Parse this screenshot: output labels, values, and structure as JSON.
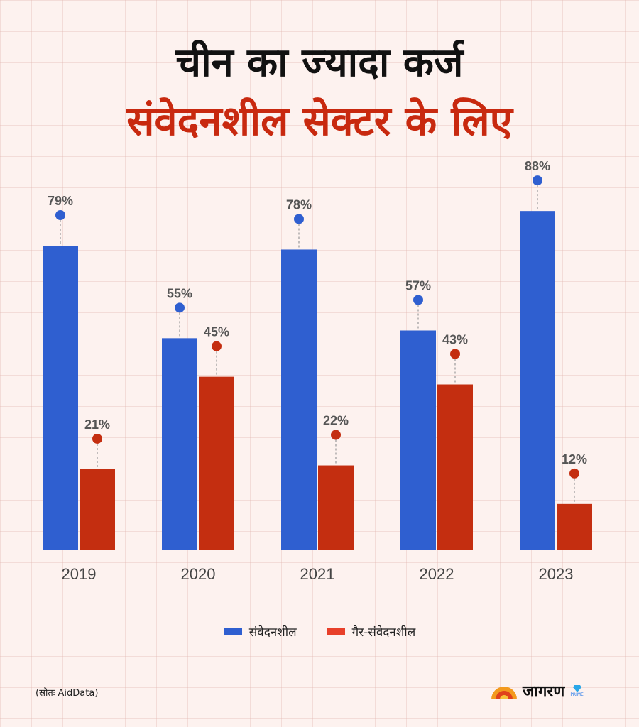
{
  "title": {
    "line1": "चीन का ज्यादा कर्ज",
    "line2": "संवेदनशील सेक्टर के लिए"
  },
  "colors": {
    "sensitive": "#2f5fd0",
    "non_sensitive": "#c42e10",
    "title_accent": "#c8290f"
  },
  "chart_data": {
    "type": "bar",
    "categories": [
      "2019",
      "2020",
      "2021",
      "2022",
      "2023"
    ],
    "series": [
      {
        "name": "संवेदनशील",
        "values": [
          79,
          55,
          78,
          57,
          88
        ],
        "color": "#2f5fd0"
      },
      {
        "name": "गैर-संवेदनशील",
        "values": [
          21,
          45,
          22,
          43,
          12
        ],
        "color": "#c42e10"
      }
    ],
    "value_suffix": "%",
    "ylim": [
      0,
      100
    ],
    "legend_position": "bottom-center"
  },
  "legend": {
    "sensitive_label": "संवेदनशील",
    "non_sensitive_label": "गैर-संवेदनशील"
  },
  "source": "(स्रोतः AidData)",
  "logo": {
    "text": "जागरण",
    "badge": "PRIME"
  }
}
